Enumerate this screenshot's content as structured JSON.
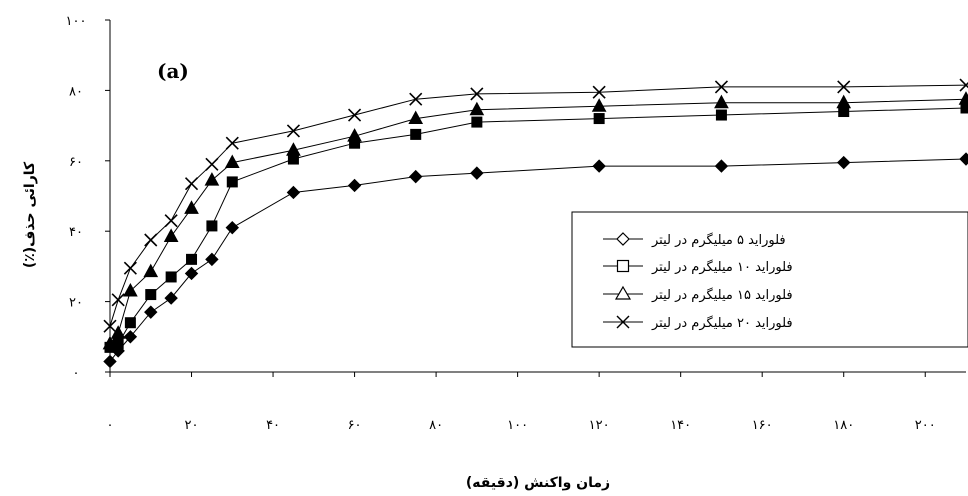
{
  "chart_data": {
    "type": "line",
    "panel_label": "(a)",
    "xlabel": "زمان واکنش (دقیقه)",
    "ylabel": "کارائی حذف(٪)",
    "xlim": [
      0,
      210
    ],
    "ylim": [
      0,
      100
    ],
    "x_ticks": [
      0,
      20,
      40,
      60,
      80,
      100,
      120,
      140,
      160,
      180,
      200
    ],
    "x_tick_labels": [
      "۰",
      "۲۰",
      "۴۰",
      "۶۰",
      "۸۰",
      "۱۰۰",
      "۱۲۰",
      "۱۴۰",
      "۱۶۰",
      "۱۸۰",
      "۲۰۰"
    ],
    "y_ticks": [
      0,
      20,
      40,
      60,
      80,
      100
    ],
    "y_tick_labels": [
      "۰",
      "۲۰",
      "۴۰",
      "۶۰",
      "۸۰",
      "۱۰۰"
    ],
    "grid": false,
    "legend_position": "right",
    "series": [
      {
        "name": "فلوراید ۵ میلیگرم در لیتر",
        "marker": "diamond",
        "x": [
          0,
          2,
          5,
          10,
          15,
          20,
          25,
          30,
          45,
          60,
          75,
          90,
          120,
          150,
          180,
          210
        ],
        "y": [
          3,
          6,
          10,
          17,
          21,
          28,
          32,
          41,
          51,
          53,
          55.5,
          56.5,
          58.5,
          58.5,
          59.5,
          60.5
        ]
      },
      {
        "name": "فلوراید ۱۰ میلیگرم در لیتر",
        "marker": "square",
        "x": [
          0,
          2,
          5,
          10,
          15,
          20,
          25,
          30,
          45,
          60,
          75,
          90,
          120,
          150,
          180,
          210
        ],
        "y": [
          7,
          8,
          14,
          22,
          27,
          32,
          41.5,
          54,
          60.5,
          65,
          67.5,
          71,
          72,
          73,
          74,
          75
        ]
      },
      {
        "name": "فلوراید ۱۵ میلیگرم در لیتر",
        "marker": "triangle",
        "x": [
          0,
          2,
          5,
          10,
          15,
          20,
          25,
          30,
          45,
          60,
          75,
          90,
          120,
          150,
          180,
          210
        ],
        "y": [
          8,
          11,
          23,
          28.5,
          38.5,
          46.5,
          54.5,
          59.5,
          63,
          67,
          72,
          74.5,
          75.5,
          76.5,
          76.5,
          77.5
        ]
      },
      {
        "name": "فلوراید ۲۰ میلیگرم در لیتر",
        "marker": "x",
        "x": [
          0,
          2,
          5,
          10,
          15,
          20,
          25,
          30,
          45,
          60,
          75,
          90,
          120,
          150,
          180,
          210
        ],
        "y": [
          13,
          20.5,
          29.5,
          37.5,
          43,
          53.5,
          59,
          65,
          68.5,
          73,
          77.5,
          79,
          79.5,
          81,
          81,
          81.5
        ]
      }
    ]
  }
}
